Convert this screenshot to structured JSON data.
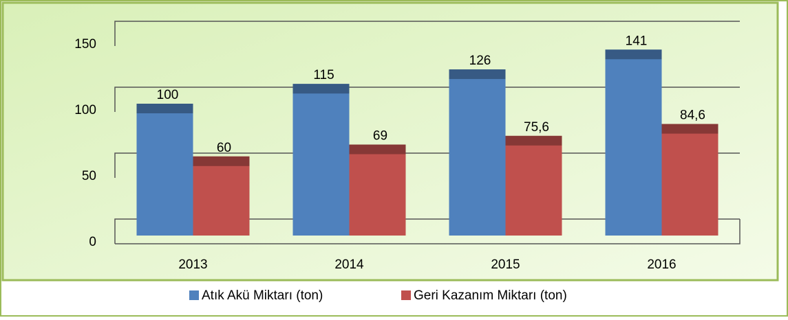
{
  "chart_data": {
    "type": "bar",
    "categories": [
      "2013",
      "2014",
      "2015",
      "2016"
    ],
    "series": [
      {
        "name": "Atık Akü Miktarı (ton)",
        "color": "#4f81bd",
        "values": [
          100,
          115,
          126,
          141
        ]
      },
      {
        "name": "Geri Kazanım Miktarı (ton)",
        "color": "#c0504d",
        "values": [
          60,
          69,
          75.6,
          84.6
        ],
        "value_labels": [
          "60",
          "69",
          "75,6",
          "84,6"
        ]
      }
    ],
    "ylim": [
      0,
      150
    ],
    "yticks": [
      0,
      50,
      100,
      150
    ],
    "grid": true,
    "legend": "bottom"
  }
}
